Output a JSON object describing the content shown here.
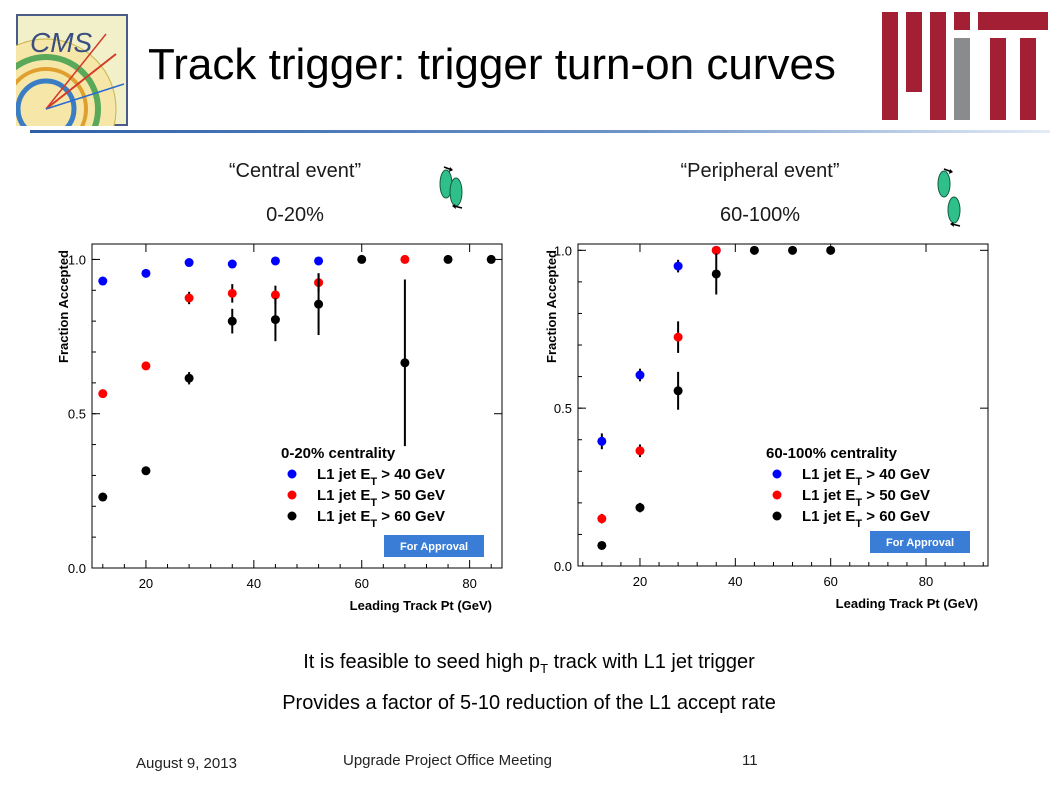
{
  "slide": {
    "title": "Track trigger: trigger turn-on curves",
    "left_subtitle": "“Central event”",
    "left_range": "0-20%",
    "right_subtitle": "“Peripheral event”",
    "right_range": "60-100%",
    "bullet_1_main": "It is feasible to seed high p",
    "bullet_1_sub": "T",
    "bullet_1_tail": " track with L1 jet trigger",
    "bullet_2": "Provides a factor of 5-10 reduction of the L1 accept rate",
    "footer_date": "August 9, 2013",
    "footer_meeting": "Upgrade Project Office Meeting",
    "footer_page": "11",
    "logo_text": "CMS",
    "icon_names": [
      "cms-logo",
      "mit-logo",
      "ellipse-pair-icon"
    ],
    "colors": {
      "accent_blue": "#2e5fa8",
      "mit_red": "#a31f34",
      "mit_gray": "#8a8b8c",
      "ellipse_green": "#2fbf8a"
    }
  },
  "chart_data": [
    {
      "type": "scatter",
      "xlabel": "Leading Track Pt (GeV)",
      "ylabel": "Fraction Accepted",
      "xlim": [
        10,
        86
      ],
      "ylim": [
        0,
        1.05
      ],
      "xticks": [
        20,
        40,
        60,
        80
      ],
      "yticks": [
        0.0,
        0.5,
        1.0
      ],
      "ytick_labels": [
        "0.0",
        "0.5",
        "1.0"
      ],
      "legend_title": "0-20% centrality",
      "legend_position": "bottom-right",
      "badge": "For Approval",
      "series": [
        {
          "name": "L1 jet E_T > 40 GeV",
          "label_main": "L1 jet E",
          "label_sub": "T",
          "label_tail": " > 40 GeV",
          "color": "#0000ff",
          "x": [
            12,
            20,
            28,
            36,
            44,
            52
          ],
          "y": [
            0.93,
            0.955,
            0.99,
            0.985,
            0.995,
            0.995
          ],
          "err": [
            0.01,
            0.01,
            0.01,
            0.01,
            0.01,
            0.01
          ]
        },
        {
          "name": "L1 jet E_T > 50 GeV",
          "label_main": "L1 jet E",
          "label_sub": "T",
          "label_tail": " > 50 GeV",
          "color": "#ff0000",
          "x": [
            12,
            20,
            28,
            36,
            44,
            52,
            68
          ],
          "y": [
            0.565,
            0.655,
            0.875,
            0.89,
            0.885,
            0.925,
            1.0
          ],
          "err": [
            0.01,
            0.01,
            0.02,
            0.03,
            0.03,
            0.03,
            0.01
          ]
        },
        {
          "name": "L1 jet E_T > 60 GeV",
          "label_main": "L1 jet E",
          "label_sub": "T",
          "label_tail": " > 60 GeV",
          "color": "#000000",
          "x": [
            12,
            20,
            28,
            36,
            44,
            52,
            60,
            68,
            76,
            84
          ],
          "y": [
            0.23,
            0.315,
            0.615,
            0.8,
            0.805,
            0.855,
            1.0,
            0.665,
            1.0,
            1.0
          ],
          "err": [
            0.01,
            0.01,
            0.02,
            0.04,
            0.07,
            0.1,
            0.01,
            0.27,
            0.01,
            0.01
          ]
        }
      ]
    },
    {
      "type": "scatter",
      "xlabel": "Leading Track Pt (GeV)",
      "ylabel": "Fraction Accepted",
      "xlim": [
        7,
        93
      ],
      "ylim": [
        0,
        1.02
      ],
      "xticks": [
        20,
        40,
        60,
        80
      ],
      "yticks": [
        0.0,
        0.5,
        1.0
      ],
      "ytick_labels": [
        "0.0",
        "0.5",
        "1.0"
      ],
      "legend_title": "60-100% centrality",
      "legend_position": "bottom-right",
      "badge": "For Approval",
      "series": [
        {
          "name": "L1 jet E_T > 40 GeV",
          "label_main": "L1 jet E",
          "label_sub": "T",
          "label_tail": " > 40 GeV",
          "color": "#0000ff",
          "x": [
            12,
            20,
            28,
            36
          ],
          "y": [
            0.395,
            0.605,
            0.95,
            1.0
          ],
          "err": [
            0.025,
            0.02,
            0.02,
            0.01
          ]
        },
        {
          "name": "L1 jet E_T > 50 GeV",
          "label_main": "L1 jet E",
          "label_sub": "T",
          "label_tail": " > 50 GeV",
          "color": "#ff0000",
          "x": [
            12,
            20,
            28,
            36
          ],
          "y": [
            0.15,
            0.365,
            0.725,
            1.0
          ],
          "err": [
            0.015,
            0.02,
            0.05,
            0.01
          ]
        },
        {
          "name": "L1 jet E_T > 60 GeV",
          "label_main": "L1 jet E",
          "label_sub": "T",
          "label_tail": " > 60 GeV",
          "color": "#000000",
          "x": [
            12,
            20,
            28,
            36,
            44,
            52,
            60
          ],
          "y": [
            0.065,
            0.185,
            0.555,
            0.925,
            1.0,
            1.0,
            1.0
          ],
          "err": [
            0.005,
            0.015,
            0.06,
            0.065,
            0.01,
            0.01,
            0.01
          ]
        }
      ]
    }
  ]
}
